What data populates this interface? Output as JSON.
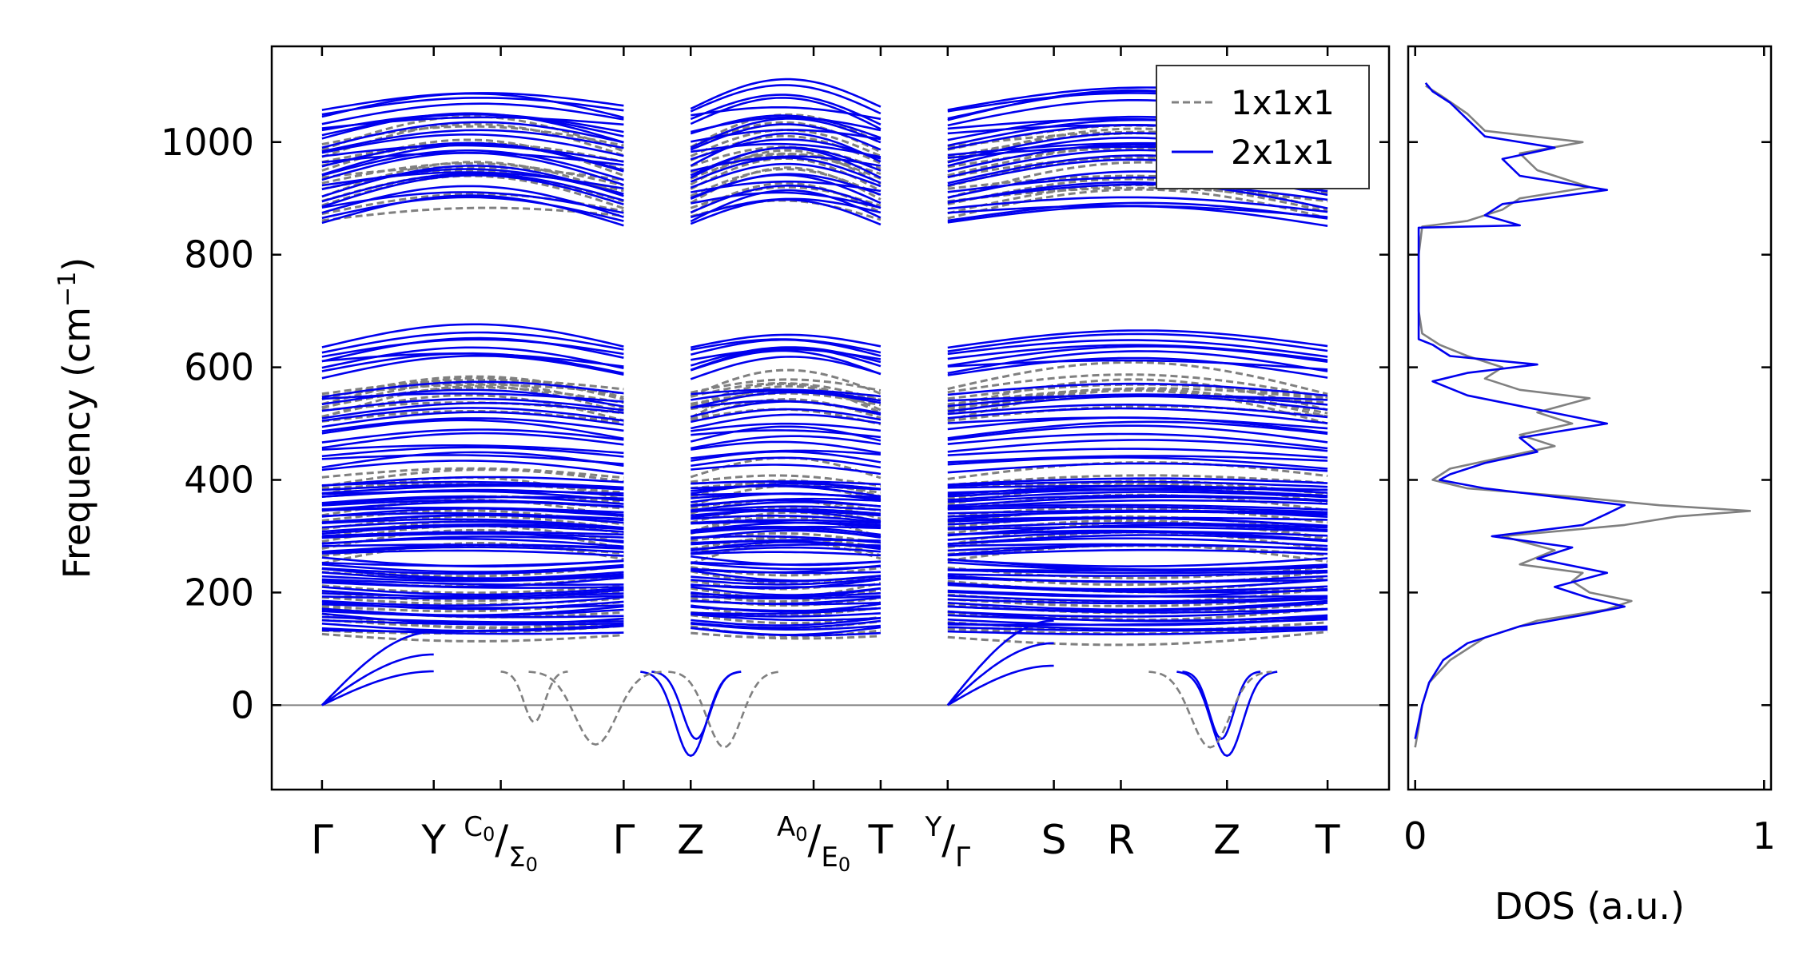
{
  "chart_data": [
    {
      "type": "line",
      "panel": "band-structure",
      "ylabel": "Frequency (cm",
      "ylabel_exponent": "−1",
      "ylabel_close": ")",
      "ylim": [
        -150,
        1170
      ],
      "yticks": [
        0,
        200,
        400,
        600,
        800,
        1000
      ],
      "ytick_labels": [
        "0",
        "200",
        "400",
        "600",
        "800",
        "1000"
      ],
      "xlim": [
        -0.45,
        9.55
      ],
      "kpoint_positions": [
        0,
        1,
        1.6,
        2.7,
        3.3,
        4.4,
        5,
        5.6,
        6.55,
        7.15,
        8.1,
        9
      ],
      "kpoint_labels": [
        {
          "id": "gamma-1",
          "text": "Γ"
        },
        {
          "id": "y-1",
          "text": "Y"
        },
        {
          "id": "c0-sigma0",
          "sup": "C",
          "sup_sub": "0",
          "slash": "/",
          "sub": "Σ",
          "sub_sub": "0"
        },
        {
          "id": "gamma-2",
          "text": "Γ"
        },
        {
          "id": "z-1",
          "text": "Z"
        },
        {
          "id": "a0-e0",
          "sup": "A",
          "sup_sub": "0",
          "slash": "/",
          "sub": "E",
          "sub_sub": "0"
        },
        {
          "id": "t-1",
          "text": "T"
        },
        {
          "id": "y-gamma",
          "sup": "Y",
          "sup_sub": "",
          "slash": "/",
          "sub": "Γ",
          "sub_sub": ""
        },
        {
          "id": "s-1",
          "text": "S"
        },
        {
          "id": "r-1",
          "text": "R"
        },
        {
          "id": "z-2",
          "text": "Z"
        },
        {
          "id": "t-2",
          "text": "T"
        }
      ],
      "segment_breaks": [
        2.7,
        5.0
      ],
      "zero_line": 0,
      "segments": [
        {
          "from": 0,
          "to": 2.7
        },
        {
          "from": 3.3,
          "to": 5.0
        },
        {
          "from": 5.6,
          "to": 9.0
        }
      ],
      "band_groups": [
        {
          "series": "1x1x1",
          "low": 860,
          "high": 1000,
          "count": 14,
          "hump": 45
        },
        {
          "series": "1x1x1",
          "low": 500,
          "high": 560,
          "count": 10,
          "hump": 40
        },
        {
          "series": "1x1x1",
          "low": 250,
          "high": 410,
          "count": 14,
          "hump": 25
        },
        {
          "series": "1x1x1",
          "low": 120,
          "high": 250,
          "count": 12,
          "hump": -15
        },
        {
          "series": "2x1x1",
          "low": 850,
          "high": 1065,
          "count": 26,
          "hump": 40
        },
        {
          "series": "2x1x1",
          "low": 580,
          "high": 640,
          "count": 8,
          "hump": 30
        },
        {
          "series": "2x1x1",
          "low": 410,
          "high": 555,
          "count": 16,
          "hump": 20
        },
        {
          "series": "2x1x1",
          "low": 265,
          "high": 395,
          "count": 30,
          "hump": 10
        },
        {
          "series": "2x1x1",
          "low": 130,
          "high": 262,
          "count": 26,
          "hump": -10
        }
      ],
      "legend": {
        "position": "upper-right",
        "entries": [
          {
            "label": "1x1x1",
            "style": "dashed",
            "color": "#808080"
          },
          {
            "label": "2x1x1",
            "style": "solid",
            "color": "#0000ee"
          }
        ]
      }
    },
    {
      "type": "line",
      "panel": "dos",
      "xlabel": "DOS (a.u.)",
      "xlim": [
        -0.02,
        1.02
      ],
      "xticks": [
        0,
        1
      ],
      "xtick_labels": [
        "0",
        "1"
      ],
      "ylim": [
        -150,
        1170
      ],
      "series": [
        {
          "name": "1x1x1",
          "color": "#808080",
          "freq": [
            -75,
            -40,
            0,
            40,
            80,
            120,
            150,
            170,
            185,
            200,
            220,
            235,
            250,
            275,
            300,
            320,
            335,
            345,
            355,
            370,
            385,
            400,
            420,
            440,
            460,
            480,
            500,
            520,
            545,
            560,
            580,
            600,
            620,
            640,
            660,
            700,
            800,
            850,
            860,
            880,
            900,
            920,
            950,
            980,
            1000,
            1020,
            1050,
            1080,
            1100
          ],
          "dos": [
            0.0,
            0.01,
            0.02,
            0.04,
            0.1,
            0.2,
            0.35,
            0.55,
            0.62,
            0.5,
            0.45,
            0.48,
            0.3,
            0.4,
            0.25,
            0.6,
            0.75,
            0.96,
            0.7,
            0.45,
            0.15,
            0.05,
            0.1,
            0.25,
            0.4,
            0.3,
            0.45,
            0.35,
            0.5,
            0.3,
            0.2,
            0.25,
            0.15,
            0.07,
            0.02,
            0.01,
            0.01,
            0.02,
            0.15,
            0.25,
            0.3,
            0.5,
            0.35,
            0.3,
            0.48,
            0.2,
            0.15,
            0.08,
            0.03
          ]
        },
        {
          "name": "2x1x1",
          "color": "#0000ee",
          "freq": [
            -60,
            -30,
            0,
            40,
            80,
            110,
            140,
            160,
            175,
            190,
            210,
            235,
            260,
            280,
            300,
            320,
            340,
            355,
            370,
            385,
            400,
            410,
            430,
            450,
            475,
            500,
            525,
            550,
            575,
            590,
            605,
            620,
            640,
            650,
            700,
            800,
            848,
            852,
            870,
            890,
            915,
            940,
            970,
            990,
            1010,
            1040,
            1070,
            1090,
            1105
          ],
          "dos": [
            0.0,
            0.01,
            0.02,
            0.04,
            0.08,
            0.15,
            0.3,
            0.48,
            0.6,
            0.5,
            0.4,
            0.55,
            0.35,
            0.45,
            0.22,
            0.48,
            0.55,
            0.6,
            0.4,
            0.2,
            0.07,
            0.1,
            0.2,
            0.35,
            0.3,
            0.55,
            0.35,
            0.15,
            0.05,
            0.15,
            0.35,
            0.1,
            0.05,
            0.01,
            0.01,
            0.01,
            0.01,
            0.3,
            0.2,
            0.25,
            0.55,
            0.3,
            0.25,
            0.4,
            0.2,
            0.15,
            0.1,
            0.05,
            0.03
          ]
        }
      ]
    }
  ]
}
